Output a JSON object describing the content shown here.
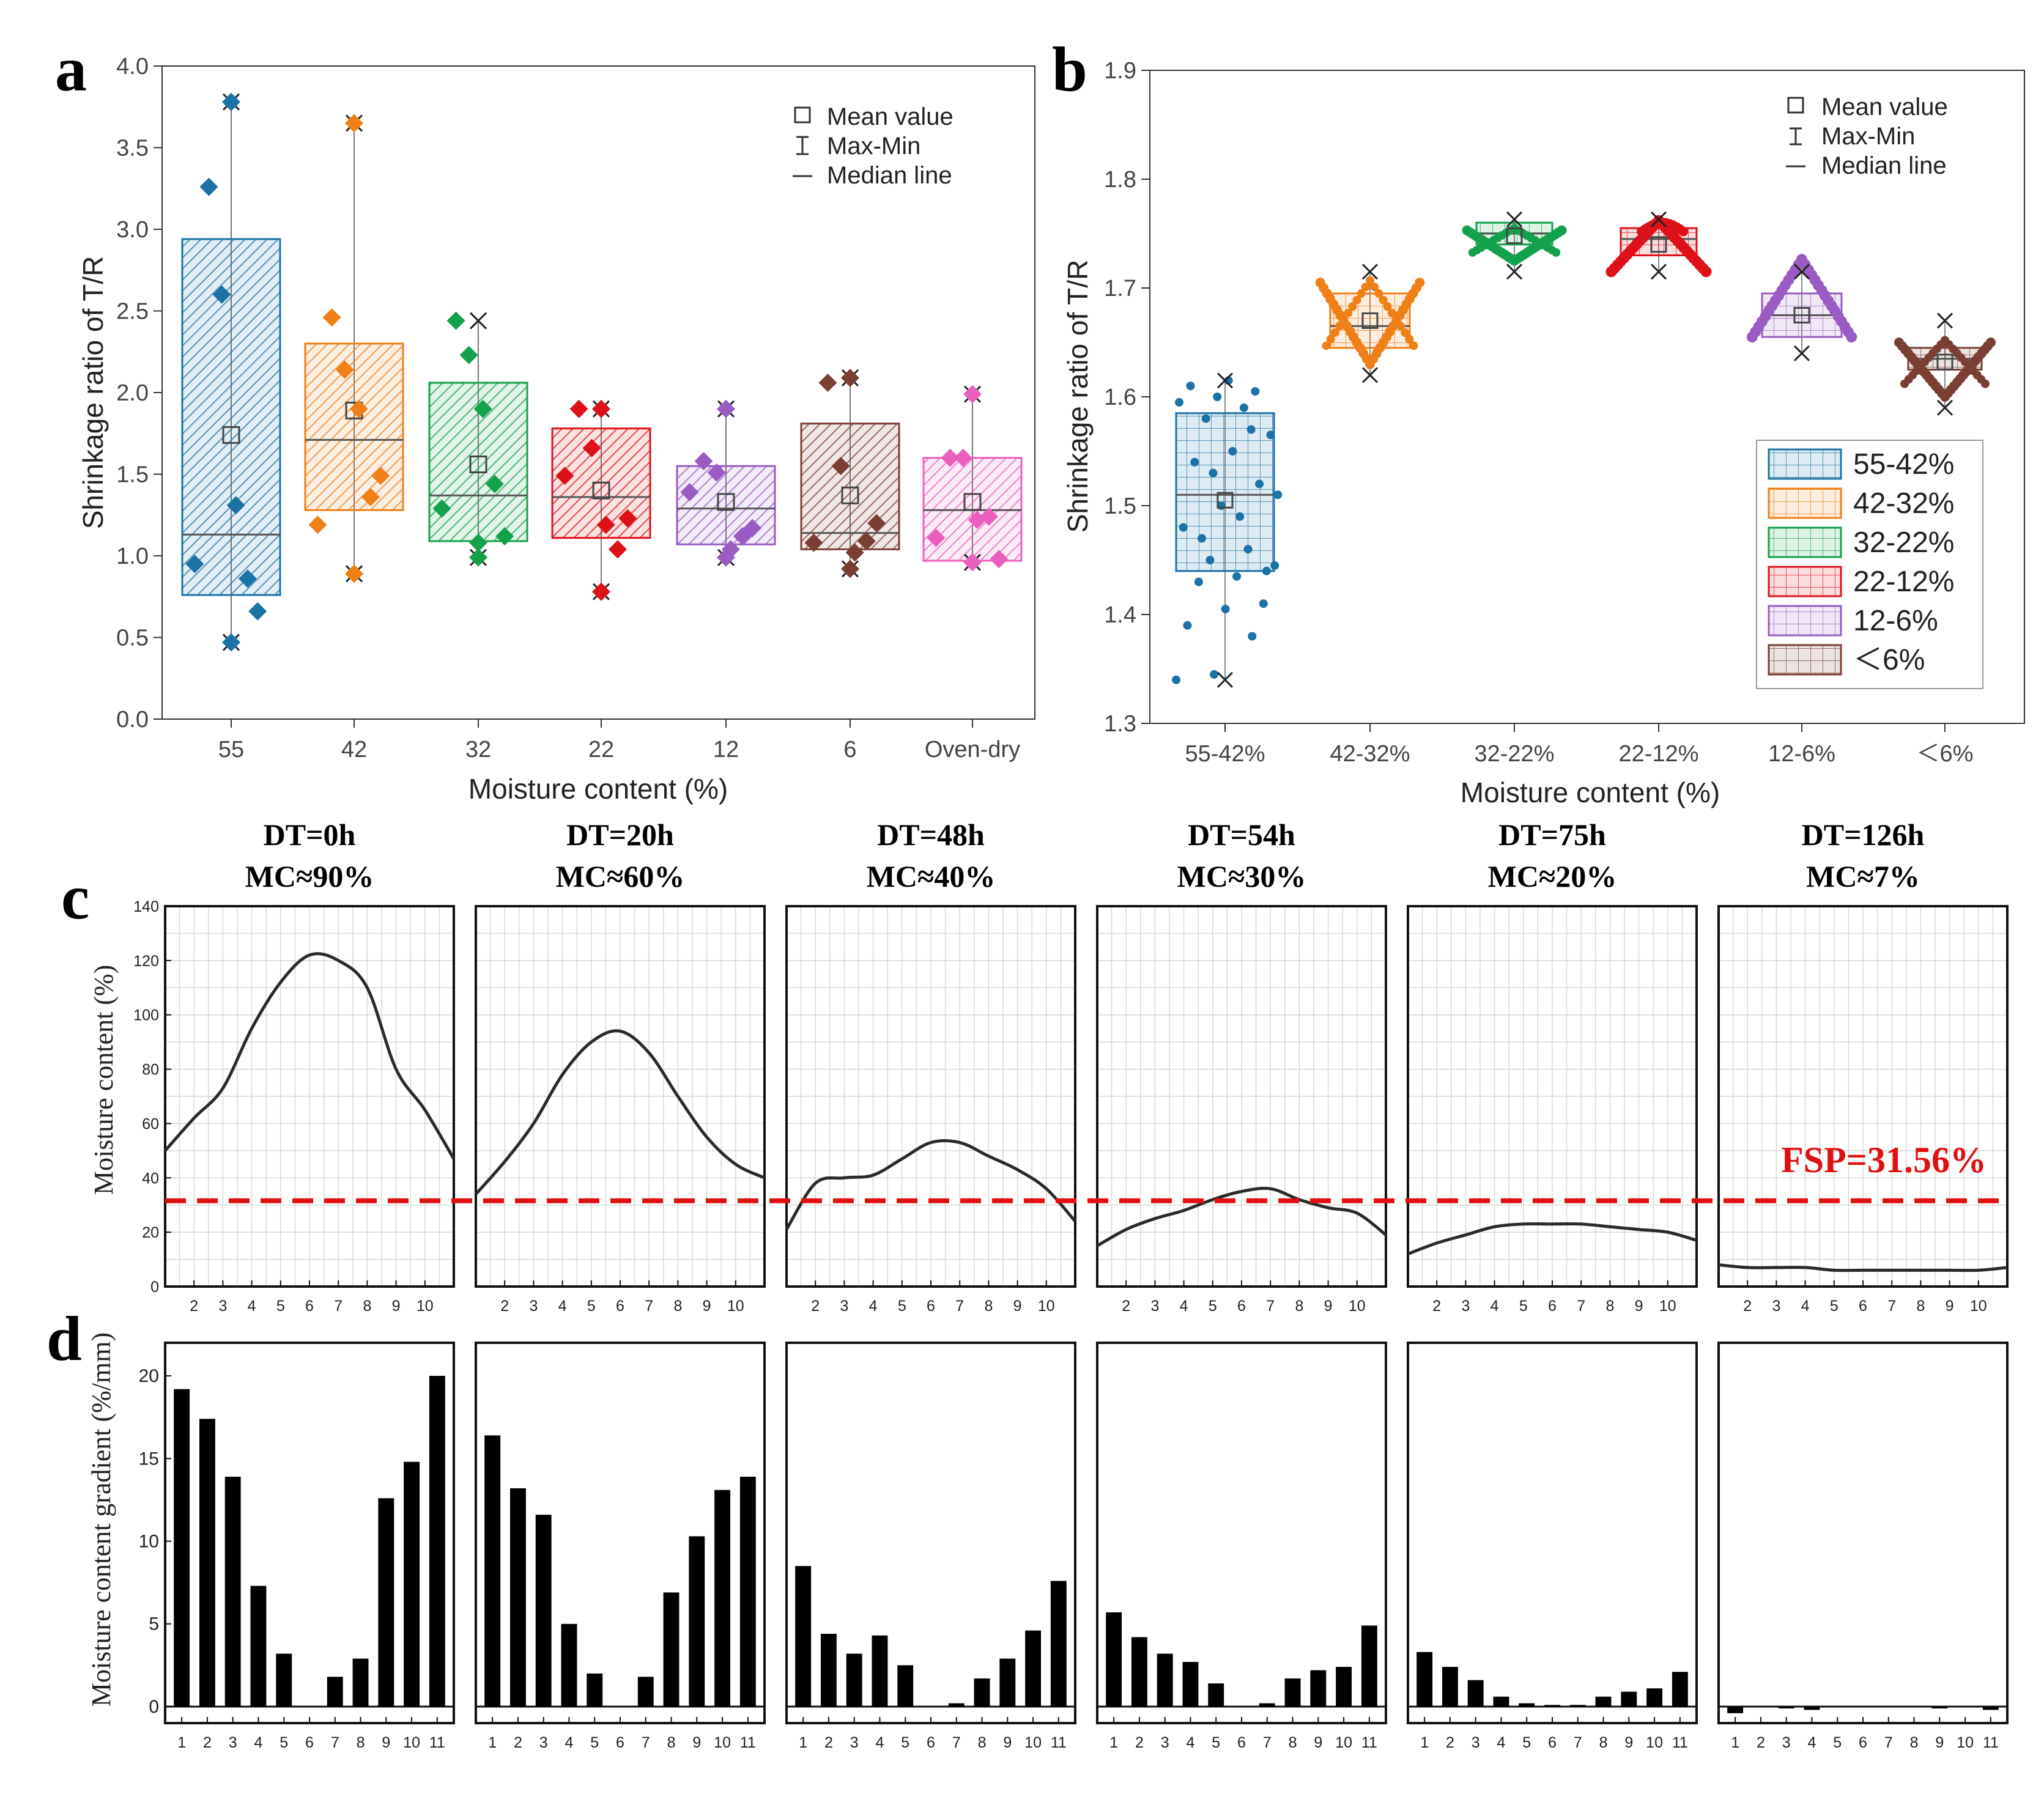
{
  "colors": {
    "c55": "#1a72a6",
    "c42": "#f07f16",
    "c32": "#14a14b",
    "c22": "#de1118",
    "c12": "#9a5bc4",
    "c6": "#7a3e33",
    "cOven": "#ea5fbe",
    "fsp": "#e01010",
    "bar": "#000000",
    "line": "#2a2a2a"
  },
  "chart_data": [
    {
      "panel": "a",
      "type": "box",
      "xlabel": "Moisture content (%)",
      "ylabel": "Shrinkage ratio of T/R",
      "ylim": [
        0,
        4.0
      ],
      "yticks": [
        "0.0",
        "0.5",
        "1.0",
        "1.5",
        "2.0",
        "2.5",
        "3.0",
        "3.5",
        "4.0"
      ],
      "categories": [
        "55",
        "42",
        "32",
        "22",
        "12",
        "6",
        "Oven-dry"
      ],
      "legend": [
        "Mean value",
        "Max-Min",
        "Median line"
      ],
      "legend_position": "top-right",
      "boxes": [
        {
          "q1": 0.76,
          "q3": 2.94,
          "median": 1.13,
          "mean": 1.74,
          "min": 0.47,
          "max": 3.78,
          "points": [
            0.95,
            3.26,
            2.6,
            1.31,
            0.86,
            0.66,
            0.47,
            3.78
          ]
        },
        {
          "q1": 1.28,
          "q3": 2.3,
          "median": 1.71,
          "mean": 1.89,
          "min": 0.89,
          "max": 3.65,
          "points": [
            1.19,
            2.46,
            2.14,
            1.9,
            1.36,
            1.49,
            0.89,
            3.65
          ]
        },
        {
          "q1": 1.09,
          "q3": 2.06,
          "median": 1.37,
          "mean": 1.56,
          "min": 0.99,
          "max": 2.44,
          "points": [
            1.29,
            2.44,
            2.23,
            1.9,
            1.44,
            1.12,
            1.08,
            0.99
          ]
        },
        {
          "q1": 1.11,
          "q3": 1.78,
          "median": 1.36,
          "mean": 1.4,
          "min": 0.78,
          "max": 1.9,
          "points": [
            1.49,
            1.9,
            1.66,
            1.19,
            1.04,
            1.23,
            1.9,
            0.78
          ]
        },
        {
          "q1": 1.07,
          "q3": 1.55,
          "median": 1.29,
          "mean": 1.33,
          "min": 0.99,
          "max": 1.9,
          "points": [
            1.39,
            1.58,
            1.51,
            1.04,
            1.12,
            1.17,
            1.9,
            0.99
          ]
        },
        {
          "q1": 1.04,
          "q3": 1.81,
          "median": 1.14,
          "mean": 1.37,
          "min": 0.92,
          "max": 2.09,
          "points": [
            1.08,
            2.06,
            1.55,
            1.02,
            1.09,
            1.2,
            2.09,
            0.92
          ]
        },
        {
          "q1": 0.97,
          "q3": 1.6,
          "median": 1.28,
          "mean": 1.33,
          "min": 0.96,
          "max": 1.99,
          "points": [
            1.11,
            1.6,
            1.6,
            1.22,
            1.24,
            0.98,
            1.99,
            0.96
          ]
        }
      ]
    },
    {
      "panel": "b",
      "type": "box",
      "xlabel": "Moisture content (%)",
      "ylabel": "Shrinkage ratio of T/R",
      "ylim": [
        1.3,
        1.9
      ],
      "yticks": [
        "1.3",
        "1.4",
        "1.5",
        "1.6",
        "1.7",
        "1.8",
        "1.9"
      ],
      "categories": [
        "55-42%",
        "42-32%",
        "32-22%",
        "22-12%",
        "12-6%",
        "＜6%"
      ],
      "legend": [
        "Mean value",
        "Max-Min",
        "Median line"
      ],
      "legend_position": "top-right",
      "series_legend": [
        "55-42%",
        "42-32%",
        "32-22%",
        "22-12%",
        "12-6%",
        "＜6%"
      ],
      "series_legend_position": "right",
      "boxes": [
        {
          "q1": 1.44,
          "q3": 1.585,
          "median": 1.51,
          "mean": 1.505,
          "min": 1.34,
          "max": 1.615
        },
        {
          "q1": 1.645,
          "q3": 1.695,
          "median": 1.665,
          "mean": 1.67,
          "min": 1.62,
          "max": 1.715
        },
        {
          "q1": 1.74,
          "q3": 1.76,
          "median": 1.75,
          "mean": 1.748,
          "min": 1.715,
          "max": 1.763
        },
        {
          "q1": 1.73,
          "q3": 1.755,
          "median": 1.745,
          "mean": 1.74,
          "min": 1.715,
          "max": 1.763
        },
        {
          "q1": 1.655,
          "q3": 1.695,
          "median": 1.675,
          "mean": 1.675,
          "min": 1.64,
          "max": 1.715
        },
        {
          "q1": 1.625,
          "q3": 1.645,
          "median": 1.635,
          "mean": 1.632,
          "min": 1.59,
          "max": 1.67
        }
      ]
    },
    {
      "panel": "c",
      "type": "line",
      "ylabel": "Moisture content (%)",
      "ylim": [
        0,
        140
      ],
      "yticks": [
        "0",
        "20",
        "40",
        "60",
        "80",
        "100",
        "120",
        "140"
      ],
      "xticks": [
        "2",
        "3",
        "4",
        "5",
        "6",
        "7",
        "8",
        "9",
        "10"
      ],
      "xrange": [
        1,
        11
      ],
      "fsp_value": 31.56,
      "fsp_label": "FSP=31.56%",
      "panels": [
        {
          "title1": "DT=0h",
          "title2": "MC≈90%",
          "x": [
            1,
            2,
            3,
            4,
            5,
            6,
            7,
            8,
            9,
            10,
            11
          ],
          "y": [
            50,
            62,
            73,
            95,
            112,
            122,
            120,
            110,
            80,
            65,
            47
          ]
        },
        {
          "title1": "DT=20h",
          "title2": "MC≈60%",
          "x": [
            1,
            2,
            3,
            4,
            5,
            6,
            7,
            8,
            9,
            10,
            11
          ],
          "y": [
            34,
            46,
            60,
            78,
            90,
            94,
            86,
            70,
            55,
            45,
            40
          ]
        },
        {
          "title1": "DT=48h",
          "title2": "MC≈40%",
          "x": [
            1,
            2,
            3,
            4,
            5,
            6,
            7,
            8,
            9,
            10,
            11
          ],
          "y": [
            21,
            38,
            40,
            41,
            47,
            53,
            53,
            48,
            43,
            36,
            24
          ]
        },
        {
          "title1": "DT=54h",
          "title2": "MC≈30%",
          "x": [
            1,
            2,
            3,
            4,
            5,
            6,
            7,
            8,
            9,
            10,
            11
          ],
          "y": [
            15,
            21,
            25,
            28,
            32,
            35,
            36,
            32,
            29,
            27,
            19
          ]
        },
        {
          "title1": "DT=75h",
          "title2": "MC≈20%",
          "x": [
            1,
            2,
            3,
            4,
            5,
            6,
            7,
            8,
            9,
            10,
            11
          ],
          "y": [
            12,
            16,
            19,
            22,
            23,
            23,
            23,
            22,
            21,
            20,
            17
          ]
        },
        {
          "title1": "DT=126h",
          "title2": "MC≈7%",
          "x": [
            1,
            2,
            3,
            4,
            5,
            6,
            7,
            8,
            9,
            10,
            11
          ],
          "y": [
            8,
            7,
            7,
            7,
            6,
            6,
            6,
            6,
            6,
            6,
            7
          ]
        }
      ]
    },
    {
      "panel": "d",
      "type": "bar",
      "ylabel": "Moisture content gradient (%/mm)",
      "ylim": [
        -1,
        22
      ],
      "yticks": [
        "0",
        "5",
        "10",
        "15",
        "20"
      ],
      "categories": [
        "1",
        "2",
        "3",
        "4",
        "5",
        "6",
        "7",
        "8",
        "9",
        "10",
        "11"
      ],
      "panels": [
        {
          "values": [
            19.2,
            17.4,
            13.9,
            7.3,
            3.2,
            0,
            1.8,
            2.9,
            12.6,
            14.8,
            20.0
          ]
        },
        {
          "values": [
            16.4,
            13.2,
            11.6,
            5.0,
            2.0,
            0,
            1.8,
            6.9,
            10.3,
            13.1,
            13.9
          ]
        },
        {
          "values": [
            8.5,
            4.4,
            3.2,
            4.3,
            2.5,
            0,
            0.2,
            1.7,
            2.9,
            4.6,
            7.6
          ]
        },
        {
          "values": [
            5.7,
            4.2,
            3.2,
            2.7,
            1.4,
            0,
            0.2,
            1.7,
            2.2,
            2.4,
            4.9
          ]
        },
        {
          "values": [
            3.3,
            2.4,
            1.6,
            0.6,
            0.2,
            0.1,
            0.1,
            0.6,
            0.9,
            1.1,
            2.1
          ]
        },
        {
          "values": [
            -0.4,
            0,
            -0.1,
            -0.2,
            0,
            0,
            0,
            0,
            -0.1,
            0,
            -0.2
          ]
        }
      ]
    }
  ]
}
